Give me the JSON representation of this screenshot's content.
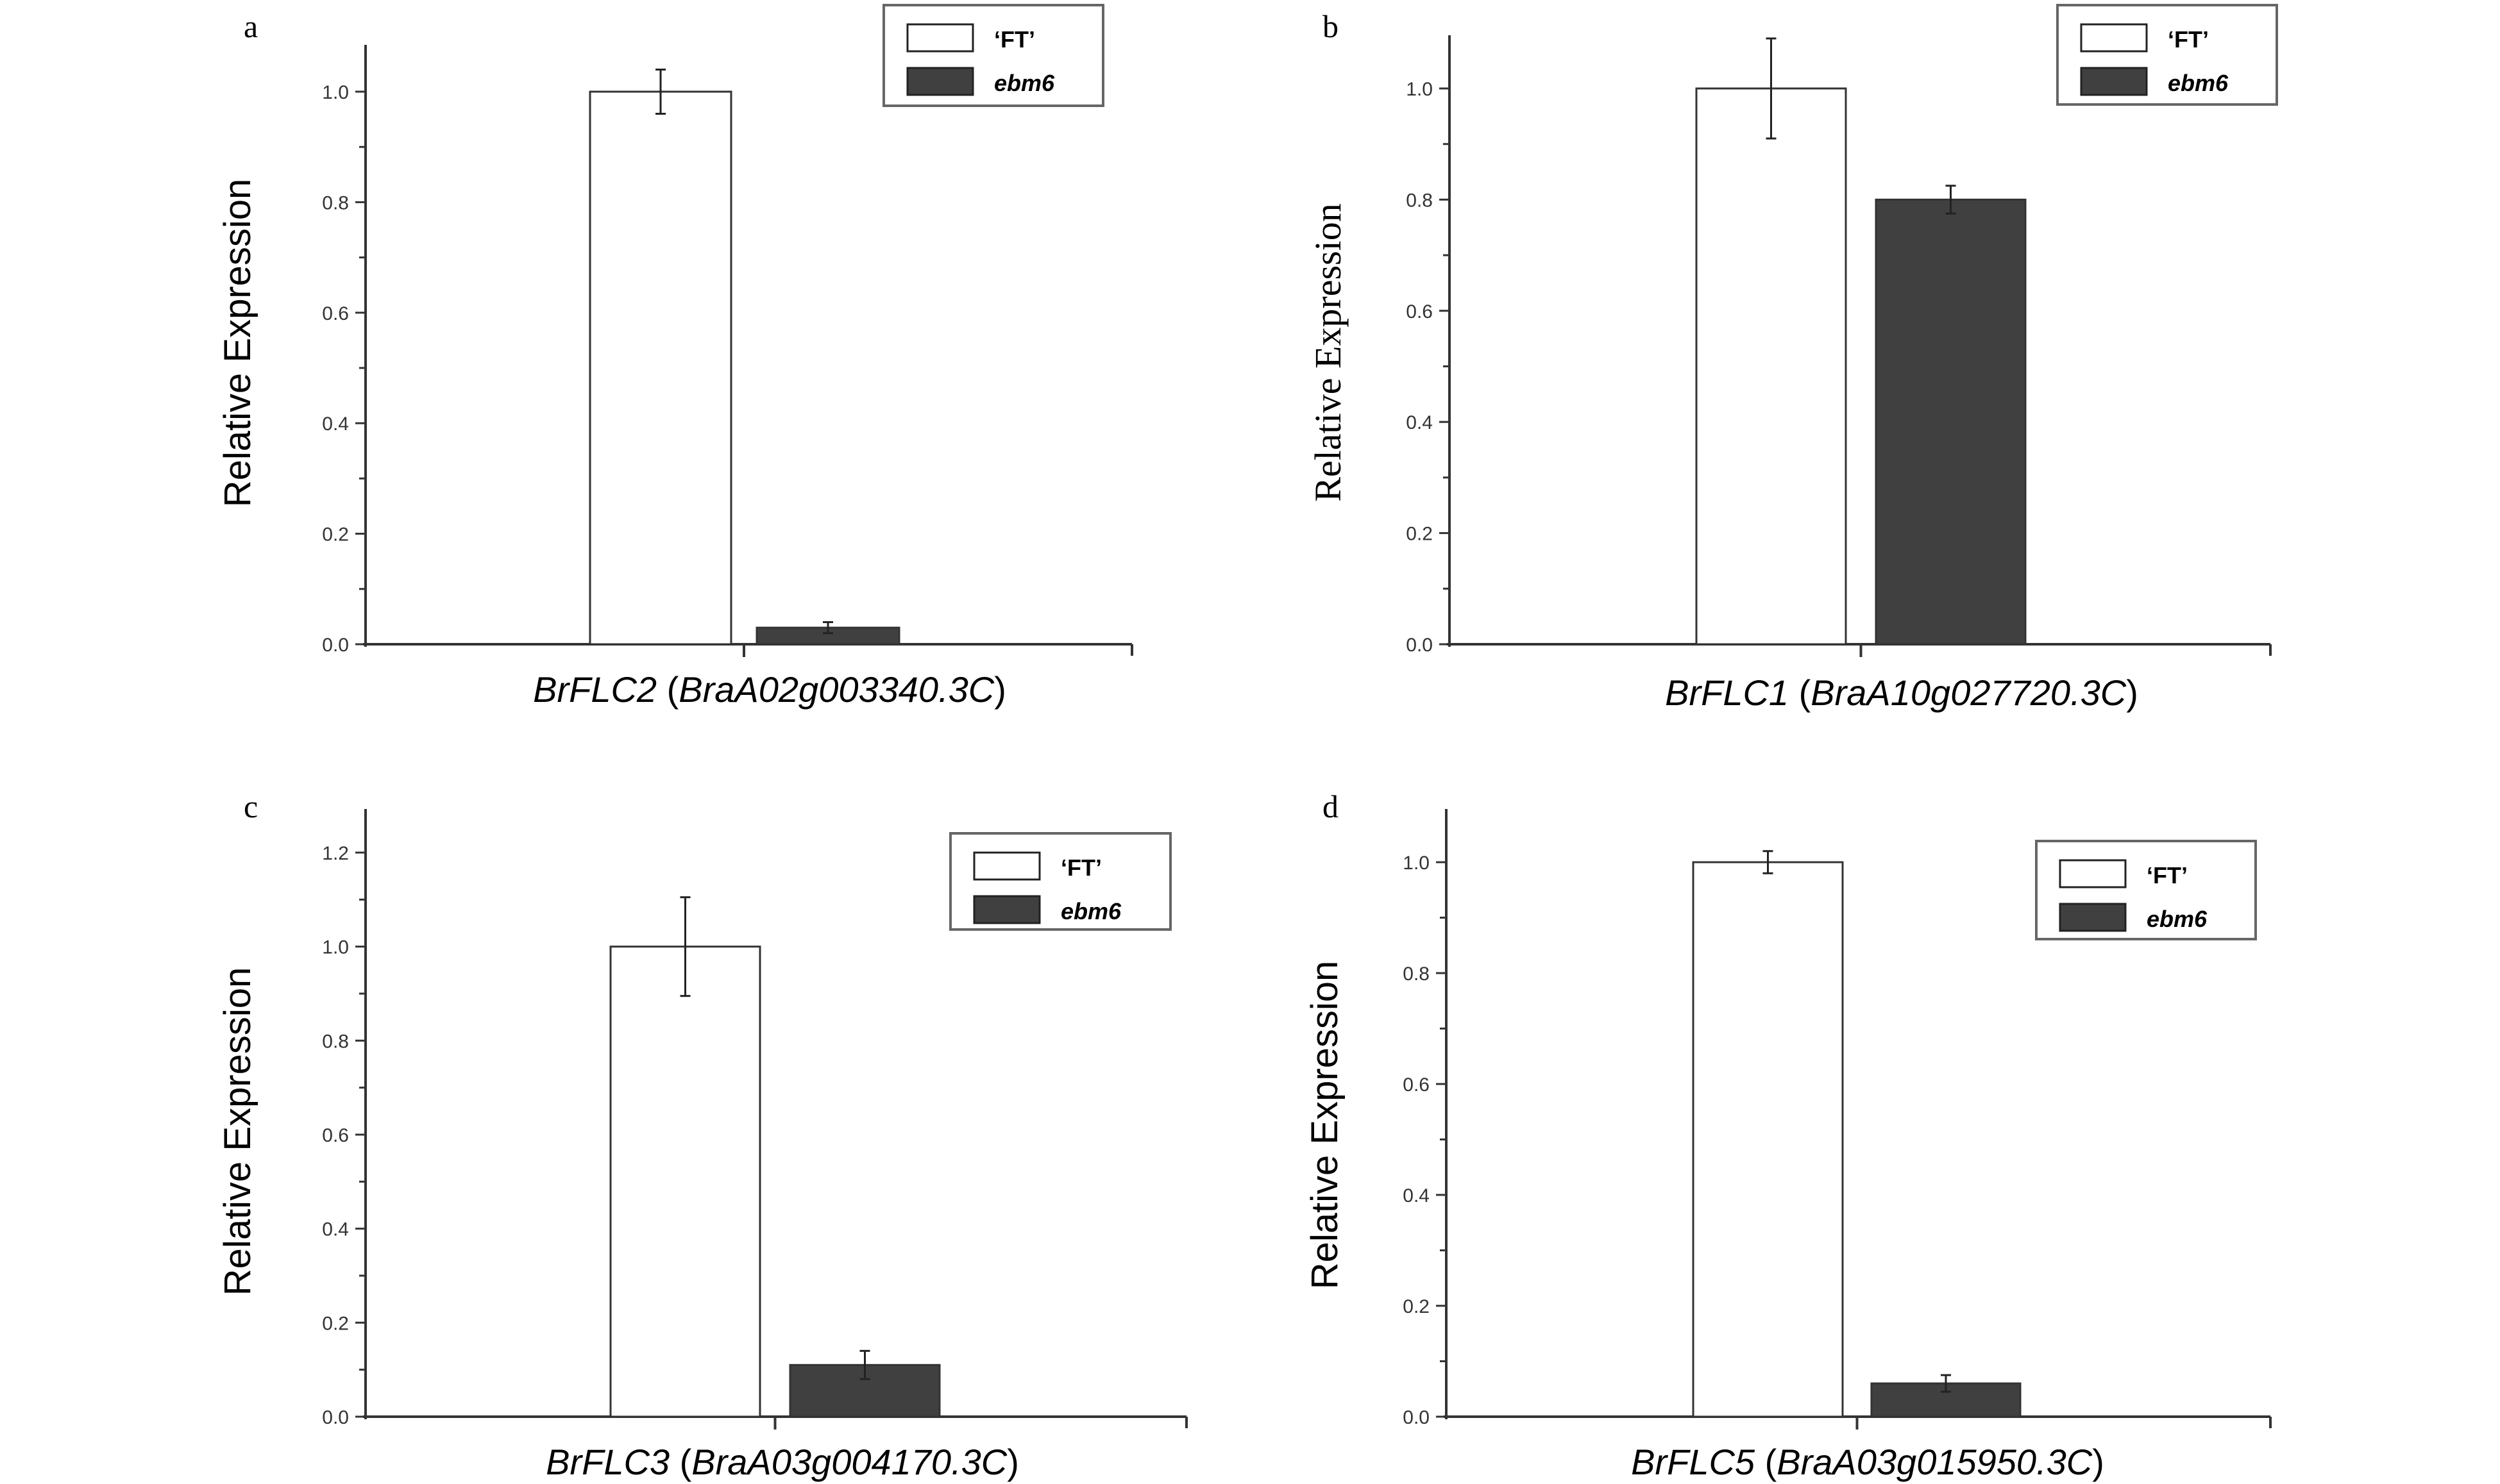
{
  "chart_data": [
    {
      "type": "bar",
      "panel_label": "a",
      "ylabel": "Relative Expression",
      "xlabel_gene": "BrFLC2",
      "xlabel_id": "BraA02g003340.3C",
      "ylim": [
        0,
        1.1
      ],
      "yticks": [
        "0.0",
        "0.2",
        "0.4",
        "0.6",
        "0.8",
        "1.0"
      ],
      "series": [
        {
          "name": "‘FT’",
          "value": 1.0,
          "error": 0.04,
          "color": "#ffffff"
        },
        {
          "name": "ebm6",
          "value": 0.03,
          "error": 0.01,
          "color": "#404040"
        }
      ],
      "legend": "top-right"
    },
    {
      "type": "bar",
      "panel_label": "b",
      "ylabel": "Relative Expression",
      "xlabel_gene": "BrFLC1",
      "xlabel_id": "BraA10g027720.3C",
      "ylim": [
        0,
        1.1
      ],
      "yticks": [
        "0.0",
        "0.2",
        "0.4",
        "0.6",
        "0.8",
        "1.0"
      ],
      "series": [
        {
          "name": "‘FT’",
          "value": 1.0,
          "error": 0.09,
          "color": "#ffffff"
        },
        {
          "name": "ebm6",
          "value": 0.8,
          "error": 0.025,
          "color": "#404040"
        }
      ],
      "legend": "top-right"
    },
    {
      "type": "bar",
      "panel_label": "c",
      "ylabel": "Relative Expression",
      "xlabel_gene": "BrFLC3",
      "xlabel_id": "BraA03g004170.3C",
      "ylim": [
        0,
        1.3
      ],
      "yticks": [
        "0.0",
        "0.2",
        "0.4",
        "0.6",
        "0.8",
        "1.0",
        "1.2"
      ],
      "series": [
        {
          "name": "‘FT’",
          "value": 1.0,
          "error": 0.105,
          "color": "#ffffff"
        },
        {
          "name": "ebm6",
          "value": 0.11,
          "error": 0.03,
          "color": "#404040"
        }
      ],
      "legend": "top-right"
    },
    {
      "type": "bar",
      "panel_label": "d",
      "ylabel": "Relative Expression",
      "xlabel_gene": "BrFLC5",
      "xlabel_id": "BraA03g015950.3C",
      "ylim": [
        0,
        1.1
      ],
      "yticks": [
        "0.0",
        "0.2",
        "0.4",
        "0.6",
        "0.8",
        "1.0"
      ],
      "series": [
        {
          "name": "‘FT’",
          "value": 1.0,
          "error": 0.02,
          "color": "#ffffff"
        },
        {
          "name": "ebm6",
          "value": 0.06,
          "error": 0.015,
          "color": "#404040"
        }
      ],
      "legend": "top-right"
    }
  ]
}
